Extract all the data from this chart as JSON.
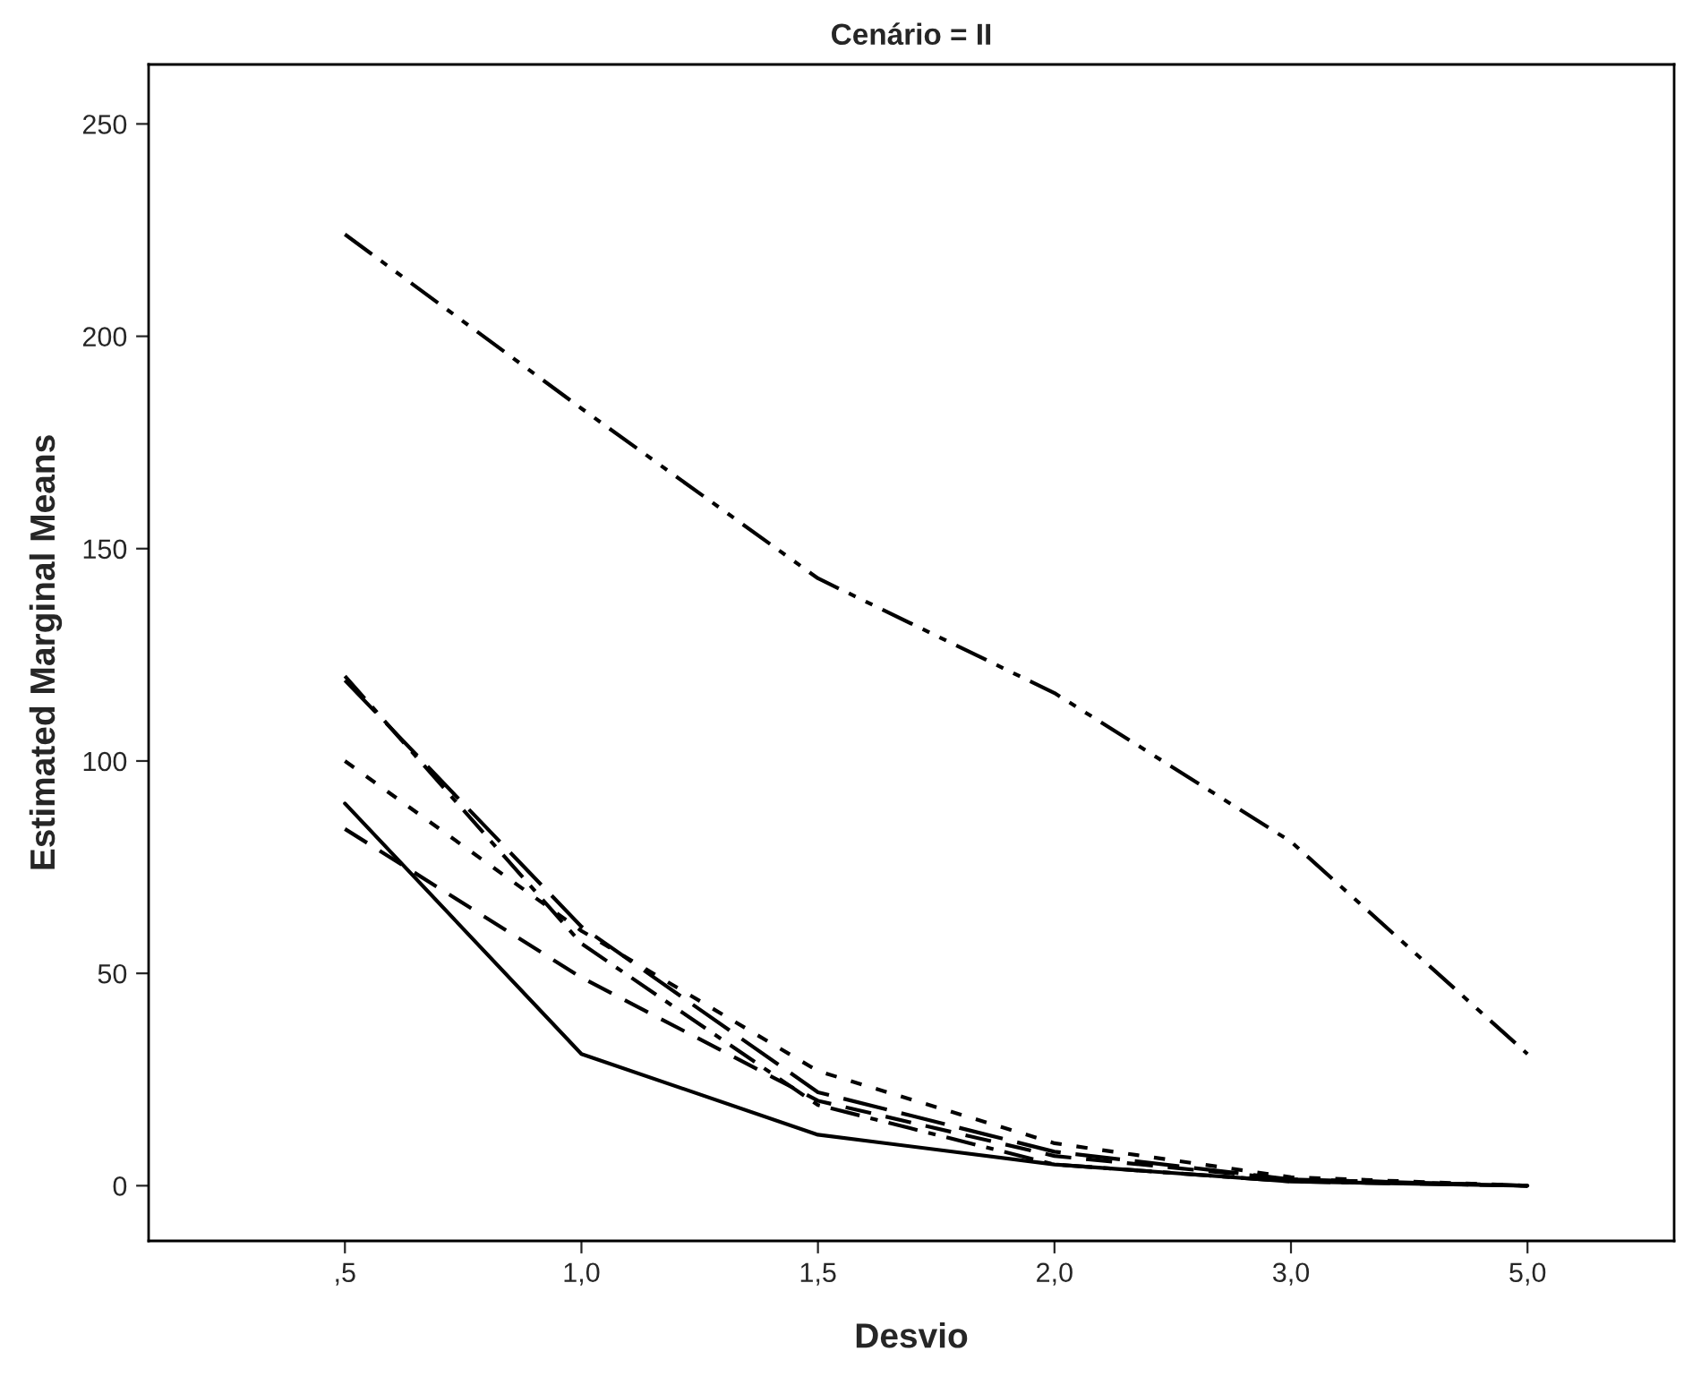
{
  "chart_data": {
    "type": "line",
    "title": "Cenário = II",
    "xlabel": "Desvio",
    "ylabel": "Estimated Marginal Means",
    "categories": [
      ",5",
      "1,0",
      "1,5",
      "2,0",
      "3,0",
      "5,0"
    ],
    "series": [
      {
        "color": "#000000",
        "line_style": "solid",
        "values": [
          90,
          31,
          12,
          5,
          1,
          0
        ]
      },
      {
        "color": "#000000",
        "line_style": "dashed",
        "values": [
          84,
          49,
          20,
          7,
          1.5,
          0
        ]
      },
      {
        "color": "#000000",
        "line_style": "dotted",
        "values": [
          100,
          60,
          27,
          10,
          2,
          0
        ]
      },
      {
        "color": "#000000",
        "line_style": "dashdot",
        "values": [
          120,
          57,
          19,
          5,
          1,
          0
        ]
      },
      {
        "color": "#000000",
        "line_style": "longdash",
        "values": [
          119,
          61,
          22,
          8,
          1.5,
          0
        ]
      },
      {
        "color": "#000000",
        "line_style": "dashdotdot",
        "values": [
          224,
          183,
          143,
          116,
          81,
          31
        ]
      }
    ],
    "ylim": [
      -13,
      264
    ],
    "yticks": [
      0,
      50,
      100,
      150,
      200,
      250
    ],
    "grid": false,
    "legend": false,
    "marker": "none"
  }
}
